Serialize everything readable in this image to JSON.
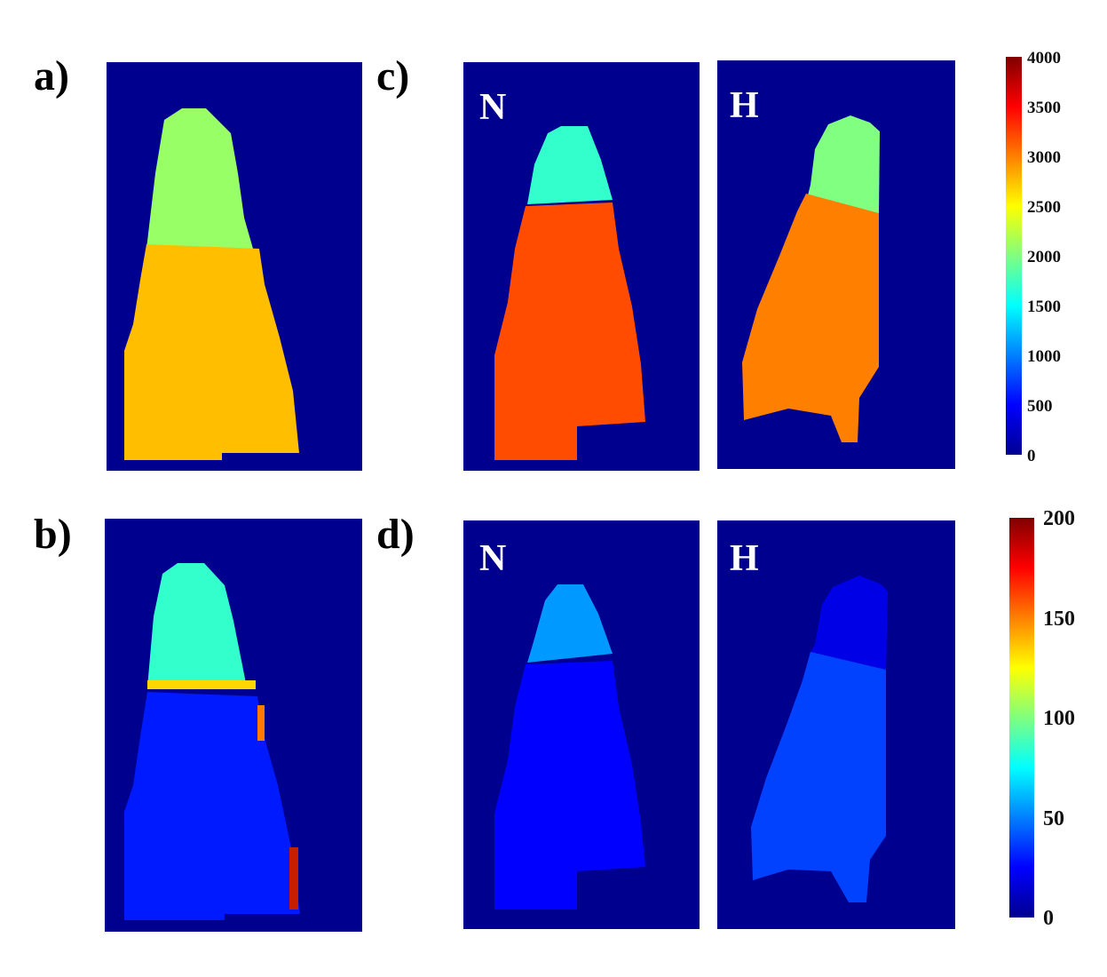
{
  "panel_labels": {
    "a": "a)",
    "b": "b)",
    "c": "c)",
    "d": "d)"
  },
  "sub_labels": {
    "c_left": "N",
    "c_right": "H",
    "d_left": "N",
    "d_right": "H"
  },
  "colorbar_top": {
    "ticks": [
      "4000",
      "3500",
      "3000",
      "2500",
      "2000",
      "1500",
      "1000",
      "500",
      "0"
    ],
    "min": 0,
    "max": 4000
  },
  "colorbar_bottom": {
    "ticks": [
      "200",
      "150",
      "100",
      "50",
      "0"
    ],
    "min": 0,
    "max": 200
  },
  "colors": {
    "background": "#00008f",
    "colormap": "jet"
  },
  "maps": {
    "a": {
      "upper_value": 2100,
      "lower_value": 2750
    },
    "b": {
      "upper_value": 85,
      "lower_value": 30
    },
    "c_N": {
      "upper_value": 1700,
      "lower_value": 3200
    },
    "c_H": {
      "upper_value": 2000,
      "lower_value": 3000
    },
    "d_N": {
      "upper_value": 55,
      "lower_value": 25
    },
    "d_H": {
      "upper_value": 20,
      "lower_value": 38
    }
  }
}
